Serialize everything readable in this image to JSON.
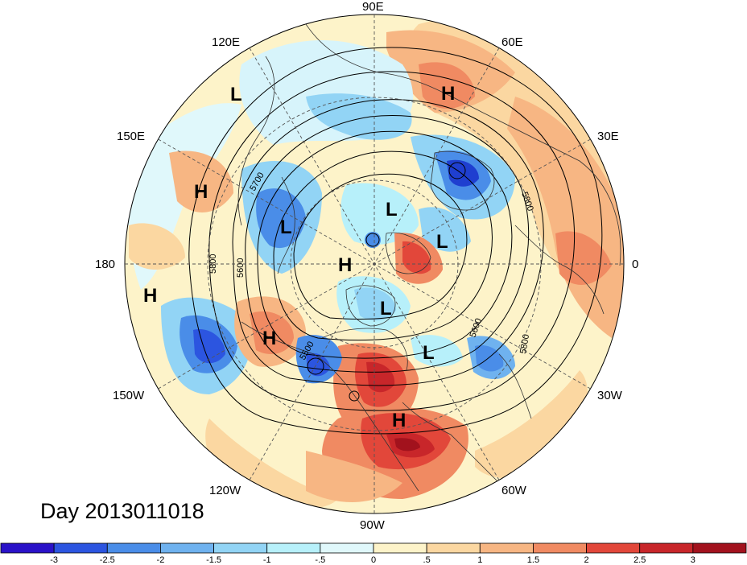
{
  "title": {
    "day_label": "Day 2013011018"
  },
  "map": {
    "projection": "north-polar-stereographic",
    "longitude_labels": [
      "90E",
      "60E",
      "30E",
      "0",
      "30W",
      "60W",
      "90W",
      "120W",
      "150W",
      "180",
      "150E",
      "120E"
    ],
    "pressure_centers": [
      {
        "type": "H",
        "name": "high-west-russia"
      },
      {
        "type": "L",
        "name": "low-east-siberia"
      },
      {
        "type": "H",
        "name": "high-north-pacific-west"
      },
      {
        "type": "L",
        "name": "low-arctic-siberian-side"
      },
      {
        "type": "L",
        "name": "low-north-pole"
      },
      {
        "type": "L",
        "name": "low-barents"
      },
      {
        "type": "H",
        "name": "high-arctic-ocean"
      },
      {
        "type": "H",
        "name": "high-bering"
      },
      {
        "type": "L",
        "name": "low-canadian-archipelago"
      },
      {
        "type": "H",
        "name": "high-gulf-of-alaska"
      },
      {
        "type": "L",
        "name": "low-north-atlantic"
      },
      {
        "type": "H",
        "name": "high-southeast-us"
      }
    ],
    "contour_labels": [
      "5700",
      "5800",
      "5600",
      "5800",
      "5500",
      "5600",
      "5800"
    ],
    "colors": {
      "ocean_neutral": "#fdf6d4",
      "light_cyan": "#d7f4fb",
      "cyan": "#a4e6f7",
      "light_blue": "#6cc4ef",
      "blue": "#3f8fe6",
      "dark_blue": "#1f3fd0",
      "light_orange": "#fbd7a1",
      "orange": "#f3a070",
      "red_orange": "#ec6b4d",
      "red": "#d8332d",
      "dark_red": "#a8151e"
    }
  },
  "colorbar": {
    "tick_labels": [
      "-3",
      "-2.5",
      "-2",
      "-1.5",
      "-1",
      "-.5",
      "0",
      ".5",
      "1",
      "1.5",
      "2",
      "2.5",
      "3"
    ],
    "colors": [
      "#2a12c8",
      "#2c55e0",
      "#4a8de8",
      "#6fb2ef",
      "#92d4f5",
      "#b7f0fa",
      "#e0f8fb",
      "#fdf3c9",
      "#fbd7a1",
      "#f7b683",
      "#f08a62",
      "#e2473a",
      "#c8262a",
      "#a2121d"
    ]
  }
}
